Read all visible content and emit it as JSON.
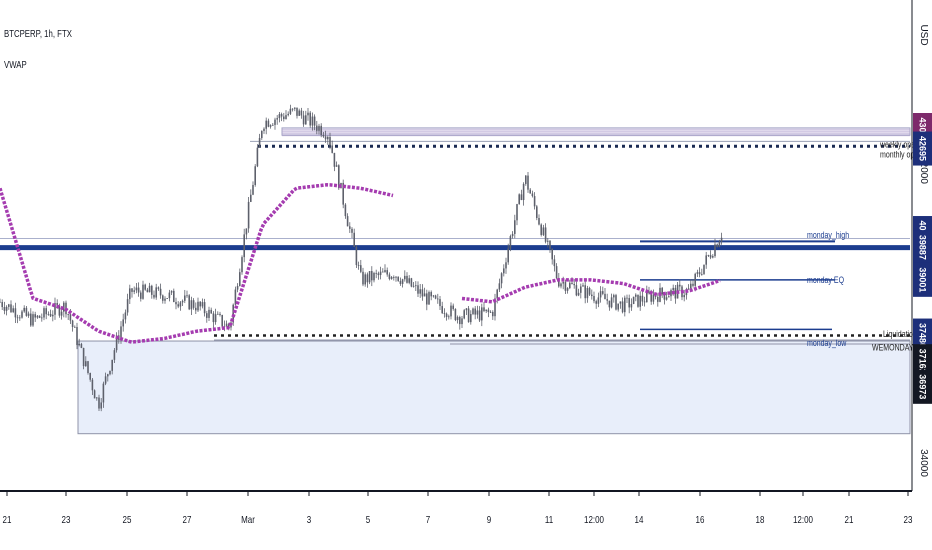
{
  "header": {
    "symbol": "BTCPERP, 1h, FTX",
    "indicator": "VWAP",
    "currency_label": "USD"
  },
  "colors": {
    "background": "#ffffff",
    "candle": "#5d606b",
    "vwap": "#a53cb0",
    "level_navy": "#1c3d8f",
    "dotted_level": "#1a2a52",
    "range_fill": "#e8eefa",
    "range_border": "#8f93a8",
    "band_fill": "#e6e1f0",
    "badge_purple": "#7d2a6b",
    "badge_navy": "#1d2f7a",
    "badge_dark": "#131722"
  },
  "chart_data": {
    "type": "line",
    "title": "BTCPERP, 1h, FTX",
    "series": [
      {
        "name": "BTCPERP",
        "style": "candles",
        "x": [
          "21",
          "22",
          "23",
          "24",
          "25",
          "26",
          "27",
          "28",
          "Mar",
          "2",
          "3",
          "4",
          "5",
          "6",
          "7",
          "8",
          "9",
          "10",
          "11",
          "12:00",
          "14",
          "15",
          "16"
        ],
        "values": [
          38400,
          37900,
          38300,
          35600,
          38700,
          38600,
          38300,
          37700,
          43300,
          43600,
          43000,
          39000,
          39200,
          38500,
          38000,
          38100,
          41800,
          39000,
          38600,
          38300,
          38600,
          38700,
          40300
        ]
      },
      {
        "name": "VWAP",
        "style": "dotted",
        "x": [
          "21",
          "22",
          "23",
          "24",
          "25",
          "26",
          "27",
          "28",
          "Mar",
          "2",
          "3",
          "4",
          "5",
          "6",
          "7",
          "8",
          "9",
          "10",
          "11",
          "12:00",
          "14",
          "15",
          "16"
        ],
        "values": [
          41500,
          38500,
          38200,
          37600,
          37300,
          37400,
          37600,
          37700,
          40500,
          41500,
          41600,
          41500,
          41300,
          null,
          38500,
          38400,
          38800,
          39000,
          39000,
          38900,
          38600,
          38700,
          39000
        ]
      }
    ],
    "x_tick_labels": [
      "21",
      "23",
      "25",
      "27",
      "Mar",
      "3",
      "5",
      "7",
      "9",
      "11",
      "12:00",
      "14",
      "16",
      "18",
      "12:00",
      "21",
      "23"
    ],
    "y_tick_labels": [
      "42000",
      "34000"
    ],
    "price_badges": [
      {
        "value": 43092,
        "label": "43092"
      },
      {
        "value": 42695,
        "label": "42695"
      },
      {
        "value": 40279,
        "label": "40279"
      },
      {
        "value": 39887,
        "label": "39887"
      },
      {
        "value": 39001,
        "label": "39001"
      },
      {
        "value": 37480,
        "label": "37480"
      },
      {
        "value": 37162,
        "label": "37162"
      },
      {
        "value": 36973,
        "label": "36973"
      }
    ],
    "levels": [
      {
        "name": "weekly high band",
        "from": 42950,
        "to": 43150
      },
      {
        "name": "weekly open",
        "value": 42650,
        "style": "dotted",
        "label": "weekly open"
      },
      {
        "name": "monday high",
        "value": 40050,
        "label": "monday_high"
      },
      {
        "name": "key level",
        "value": 39880,
        "style": "thick"
      },
      {
        "name": "monday EQ",
        "value": 39001,
        "label": "monday EQ"
      },
      {
        "name": "weekly open lower",
        "value": 37480,
        "style": "dotted"
      },
      {
        "name": "monday low",
        "value": 37360,
        "label": "monday_low"
      }
    ],
    "range_box": {
      "from": 34800,
      "to": 37330,
      "label": ""
    },
    "annotations": [
      {
        "text": "weekly open",
        "value": 42700
      },
      {
        "text": "monthly open",
        "value": 42420
      },
      {
        "text": "monday_high",
        "value": 40220
      },
      {
        "text": "monday EQ",
        "value": 38990
      },
      {
        "text": "Liquidation",
        "value": 37520
      },
      {
        "text": "monday_low",
        "value": 37280
      },
      {
        "text": "WEMONDAY median line",
        "value": 37150
      }
    ],
    "xlabel": "",
    "ylabel": "",
    "ylim": [
      34000,
      44500
    ],
    "grid": false,
    "legend": "top-left"
  }
}
